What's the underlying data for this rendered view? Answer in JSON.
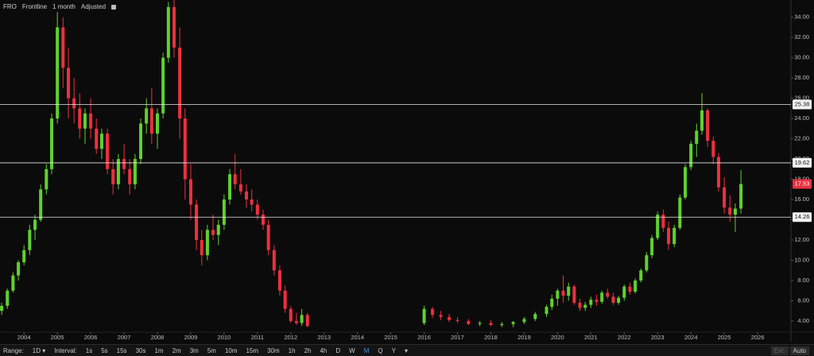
{
  "toolbar": {
    "symbol": "FRO",
    "name": "Frontline",
    "period": "1 month",
    "adjust": "Adjusted"
  },
  "bottom_bar": {
    "range_label": "Range:",
    "range": "1D",
    "interval_label": "Interval:",
    "intervals": [
      "1s",
      "5s",
      "15s",
      "30s",
      "1m",
      "2m",
      "3m",
      "5m",
      "10m",
      "15m",
      "30m",
      "1h",
      "2h",
      "4h",
      "D",
      "W",
      "M",
      "Q",
      "Y"
    ],
    "ext": "Ext.",
    "auto": "Auto"
  },
  "chart_data": {
    "type": "candlestick",
    "up_color": "#5fd12e",
    "down_color": "#ee2f3f",
    "xlim": [
      2003.28,
      2027.0
    ],
    "xticks": [
      2004,
      2005,
      2006,
      2007,
      2008,
      2009,
      2010,
      2011,
      2012,
      2013,
      2014,
      2015,
      2016,
      2017,
      2018,
      2019,
      2020,
      2021,
      2022,
      2023,
      2024,
      2025,
      2026
    ],
    "ylim": [
      2.9,
      35.7
    ],
    "yticks": [
      {
        "value": 4,
        "label": "4.00"
      },
      {
        "value": 6,
        "label": "6.00"
      },
      {
        "value": 8,
        "label": "8.00"
      },
      {
        "value": 10,
        "label": "10.00"
      },
      {
        "value": 12,
        "label": "12.00"
      },
      {
        "value": 14,
        "label": "14.00"
      },
      {
        "value": 16,
        "label": "16.00"
      },
      {
        "value": 18,
        "label": "18.00"
      },
      {
        "value": 20,
        "label": "20.00"
      },
      {
        "value": 22,
        "label": "22.00"
      },
      {
        "value": 24,
        "label": "24.00"
      },
      {
        "value": 26,
        "label": "26.00"
      },
      {
        "value": 28,
        "label": "28.00"
      },
      {
        "value": 30,
        "label": "30.00"
      },
      {
        "value": 32,
        "label": "32.00"
      },
      {
        "value": 34,
        "label": "34.00"
      }
    ],
    "levels": [
      {
        "value": 25.38,
        "label": "25.38"
      },
      {
        "value": 19.62,
        "label": "19.62"
      },
      {
        "value": 14.26,
        "label": "14.26"
      }
    ],
    "last": {
      "value": 17.53,
      "label": "17.53"
    },
    "x": [
      2003.33,
      2003.5,
      2003.67,
      2003.83,
      2004.0,
      2004.17,
      2004.33,
      2004.5,
      2004.67,
      2004.83,
      2005.0,
      2005.17,
      2005.33,
      2005.5,
      2005.67,
      2005.83,
      2006.0,
      2006.17,
      2006.33,
      2006.5,
      2006.67,
      2006.83,
      2007.0,
      2007.17,
      2007.33,
      2007.5,
      2007.67,
      2007.83,
      2008.0,
      2008.17,
      2008.33,
      2008.5,
      2008.67,
      2008.83,
      2009.0,
      2009.17,
      2009.33,
      2009.5,
      2009.67,
      2009.83,
      2010.0,
      2010.17,
      2010.33,
      2010.5,
      2010.67,
      2010.83,
      2011.0,
      2011.17,
      2011.33,
      2011.5,
      2011.67,
      2011.83,
      2012.0,
      2012.17,
      2012.33,
      2012.5,
      2016.0,
      2016.25,
      2016.5,
      2016.75,
      2017.0,
      2017.33,
      2017.67,
      2018.0,
      2018.33,
      2018.67,
      2019.0,
      2019.33,
      2019.67,
      2019.83,
      2020.0,
      2020.17,
      2020.33,
      2020.5,
      2020.67,
      2020.83,
      2021.0,
      2021.17,
      2021.33,
      2021.5,
      2021.67,
      2021.83,
      2022.0,
      2022.17,
      2022.33,
      2022.5,
      2022.67,
      2022.83,
      2023.0,
      2023.17,
      2023.33,
      2023.5,
      2023.67,
      2023.83,
      2024.0,
      2024.17,
      2024.33,
      2024.5,
      2024.67,
      2024.83,
      2025.0,
      2025.17,
      2025.33,
      2025.5
    ],
    "open": [
      5,
      5.5,
      7,
      8.5,
      9.8,
      11,
      13,
      14,
      17,
      19,
      24,
      33,
      29,
      26,
      25,
      23,
      24.5,
      23,
      21,
      22.5,
      19,
      17.5,
      20,
      19,
      17.5,
      20,
      23.5,
      25,
      22.5,
      24.5,
      30,
      35,
      31,
      24,
      18,
      15.5,
      12,
      10.5,
      13,
      12.5,
      13.5,
      16,
      18.5,
      17.5,
      16.8,
      16,
      15.5,
      14.5,
      13.5,
      11,
      9,
      7,
      5.2,
      4,
      3.8,
      4.6,
      3.8,
      5.2,
      4.6,
      4.4,
      4.1,
      4,
      3.7,
      3.8,
      3.6,
      3.7,
      3.9,
      4.2,
      4.7,
      5.4,
      6.2,
      7,
      6.5,
      7.4,
      5.8,
      5.3,
      5.6,
      6.1,
      5.9,
      6.8,
      6.4,
      5.8,
      6.3,
      7.4,
      6.9,
      8,
      9,
      10.5,
      12.2,
      14.5,
      13.2,
      11.6,
      13.2,
      16.2,
      19.2,
      21.5,
      22.8,
      24.8,
      21.8,
      20.2,
      17.2,
      15.2,
      14.5,
      15.1
    ],
    "high": [
      5.8,
      7.2,
      8.8,
      10,
      11.5,
      13.5,
      14.5,
      17.5,
      19.5,
      24.5,
      34.5,
      34,
      31,
      28,
      26.5,
      25,
      26,
      24,
      23,
      23,
      20,
      20.5,
      21.5,
      20,
      20.5,
      24,
      26,
      27,
      25,
      30.5,
      35.5,
      36,
      33,
      25,
      19.5,
      16,
      13,
      13.5,
      14.5,
      14,
      16.5,
      19,
      20.5,
      19,
      17.5,
      17,
      16,
      15,
      14,
      11.5,
      9.5,
      7.5,
      5.5,
      4.8,
      5.2,
      4.8,
      5.5,
      5.4,
      5,
      4.7,
      4.4,
      4.2,
      4,
      4.1,
      3.9,
      4,
      4.4,
      4.9,
      5.6,
      6.6,
      7.2,
      8.5,
      7.8,
      7.6,
      6.2,
      5.9,
      6.4,
      6.6,
      7,
      7.2,
      6.8,
      6.5,
      7.6,
      7.8,
      8.2,
      9.2,
      10.8,
      12.5,
      14.8,
      15,
      13.8,
      13.5,
      16.5,
      19.5,
      21.8,
      23.5,
      26.5,
      25,
      22.2,
      20.6,
      18.2,
      16.4,
      15.6,
      18.9
    ],
    "low": [
      4.6,
      5.2,
      6.8,
      8,
      9.5,
      10.5,
      12,
      13.8,
      16.5,
      18.5,
      23.5,
      27,
      24,
      23.5,
      22,
      21.5,
      22,
      20.5,
      20,
      18.5,
      16.5,
      17,
      18.5,
      16.5,
      17,
      19.5,
      22.5,
      21.5,
      21,
      24,
      29.5,
      30,
      22,
      16,
      14,
      11,
      9.5,
      10,
      12,
      11.5,
      13,
      15.5,
      17,
      16.5,
      15.2,
      14.8,
      14,
      13,
      10.5,
      8.5,
      6.5,
      4.8,
      3.8,
      3.6,
      3.5,
      3.4,
      3.6,
      4.3,
      4.1,
      3.9,
      3.8,
      3.6,
      3.5,
      3.5,
      3.4,
      3.4,
      3.7,
      4,
      4.4,
      5.1,
      5.5,
      5.8,
      6,
      5.6,
      5,
      5,
      5.3,
      5.5,
      5.7,
      6.2,
      5.6,
      5.6,
      6,
      6.6,
      6.7,
      7.8,
      8.8,
      10.2,
      12,
      12.8,
      11,
      11.3,
      13,
      16,
      18.9,
      20.2,
      22.4,
      21.2,
      19.5,
      16.8,
      14.6,
      13.8,
      12.8,
      14.6
    ],
    "close": [
      5.5,
      7,
      8.5,
      9.8,
      11,
      13,
      14,
      17,
      19,
      24,
      33,
      29,
      26,
      25,
      23,
      24.5,
      23,
      21,
      22.5,
      19,
      17.5,
      20,
      19,
      17.5,
      20,
      23.5,
      25,
      22.5,
      24.5,
      30,
      35,
      31,
      24,
      18,
      15.5,
      12,
      10.5,
      13,
      12.5,
      13.5,
      16,
      18.5,
      17.5,
      16.8,
      16,
      15.5,
      14.5,
      13.5,
      11,
      9,
      7,
      5.2,
      4,
      3.8,
      4.6,
      3.5,
      5.2,
      4.6,
      4.4,
      4.1,
      4,
      3.7,
      3.8,
      3.6,
      3.7,
      3.9,
      4.2,
      4.7,
      5.4,
      6.2,
      7,
      6.5,
      7.4,
      5.8,
      5.3,
      5.6,
      6.1,
      5.9,
      6.8,
      6.4,
      5.8,
      6.3,
      7.4,
      6.9,
      8,
      9,
      10.5,
      12.2,
      14.5,
      13.2,
      11.6,
      13.2,
      16.2,
      19.2,
      21.5,
      22.8,
      24.8,
      21.8,
      20.2,
      17.2,
      15.2,
      14.5,
      15.1,
      17.53
    ]
  }
}
